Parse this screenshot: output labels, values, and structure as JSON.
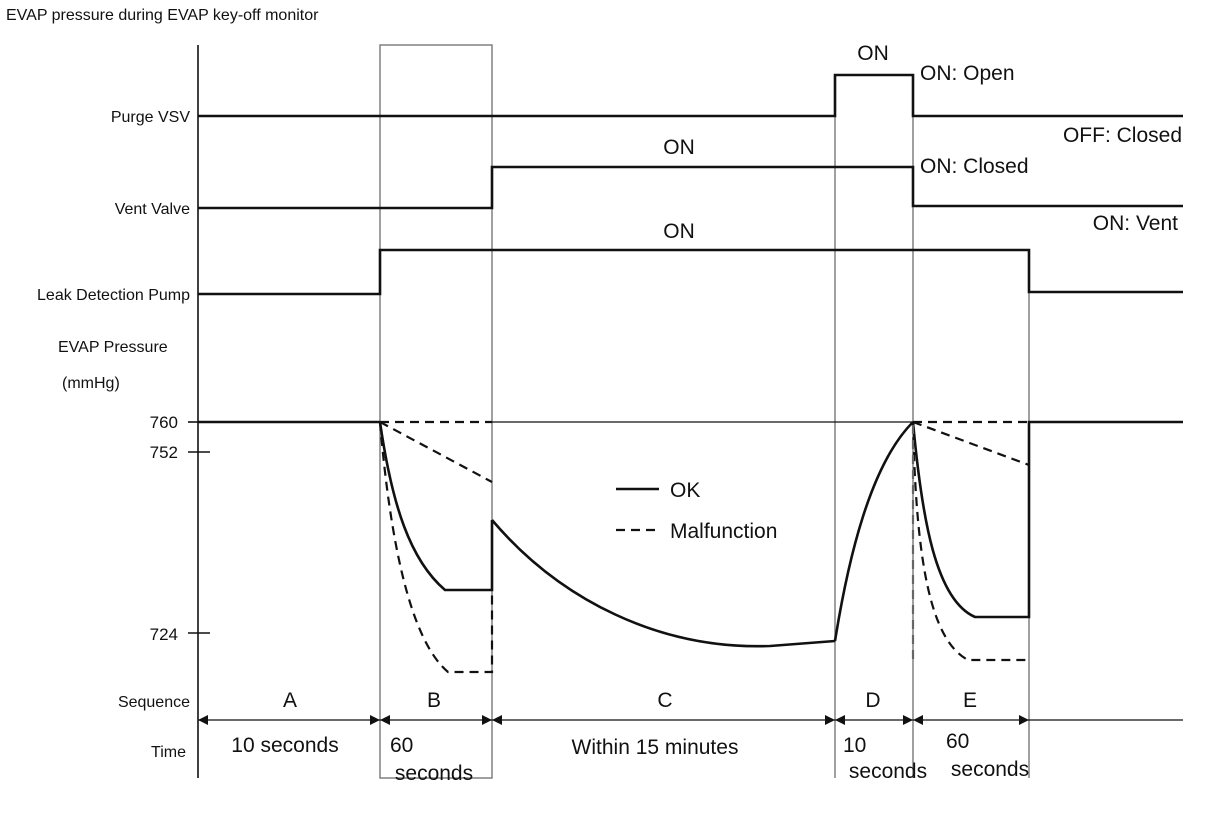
{
  "title": "EVAP pressure during EVAP key-off monitor",
  "rows": {
    "purge_vsv": "Purge VSV",
    "vent_valve": "Vent Valve",
    "leak_pump": "Leak Detection Pump",
    "pressure_label": "EVAP Pressure",
    "pressure_unit": "(mmHg)",
    "sequence": "Sequence",
    "time": "Time"
  },
  "states": {
    "purge_on": "ON",
    "purge_open": "ON: Open",
    "purge_closed": "OFF: Closed",
    "vent_on": "ON",
    "vent_closed": "ON: Closed",
    "vent_vent": "ON: Vent",
    "pump_on": "ON"
  },
  "ticks": {
    "t760": "760",
    "t752": "752",
    "t724": "724"
  },
  "legend": {
    "ok": "OK",
    "malfunction": "Malfunction"
  },
  "sequence": [
    {
      "letter": "A",
      "time1": "10 seconds",
      "time2": ""
    },
    {
      "letter": "B",
      "time1": "60",
      "time2": "seconds"
    },
    {
      "letter": "C",
      "time1": "Within 15 minutes",
      "time2": ""
    },
    {
      "letter": "D",
      "time1": "10",
      "time2": "seconds"
    },
    {
      "letter": "E",
      "time1": "60",
      "time2": "seconds"
    }
  ],
  "colors": {
    "line": "#111111",
    "grid": "#777777",
    "background": "#ffffff"
  }
}
